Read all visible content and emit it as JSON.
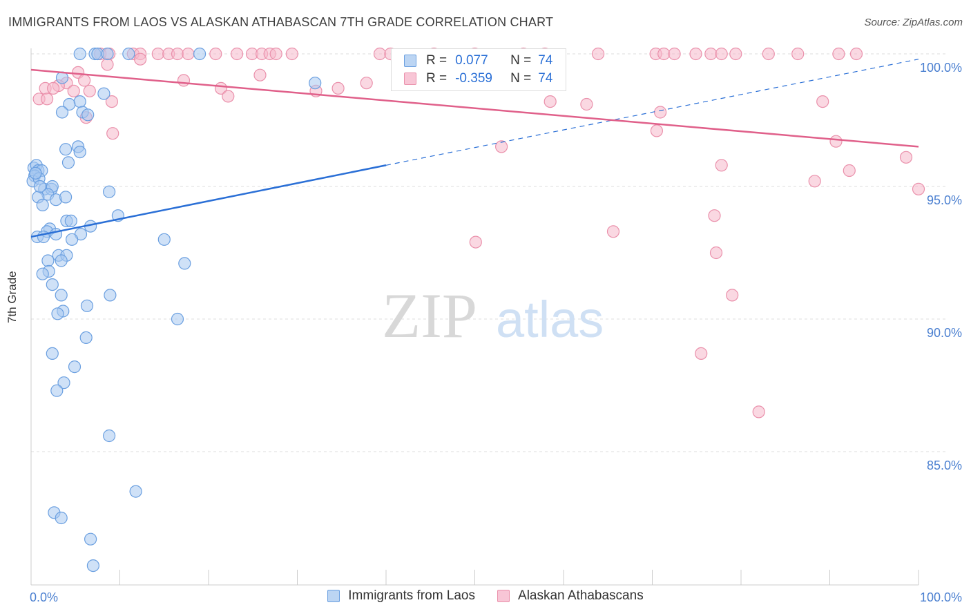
{
  "title": "IMMIGRANTS FROM LAOS VS ALASKAN ATHABASCAN 7TH GRADE CORRELATION CHART",
  "source": "Source: ZipAtlas.com",
  "watermark": {
    "part1": "ZIP",
    "part2": "atlas"
  },
  "legend_top": {
    "rows": [
      {
        "r_label": "R =",
        "r_value": "0.077",
        "n_label": "N =",
        "n_value": "74"
      },
      {
        "r_label": "R =",
        "r_value": "-0.359",
        "n_label": "N =",
        "n_value": "74"
      }
    ]
  },
  "legend_bottom": {
    "items": [
      {
        "label": "Immigrants from Laos"
      },
      {
        "label": "Alaskan Athabascans"
      }
    ]
  },
  "colors": {
    "blue_fill": "#a8c8f0",
    "blue_stroke": "#6a9fe0",
    "blue_line": "#2a6fd6",
    "pink_fill": "#f5b8cb",
    "pink_stroke": "#ea90ab",
    "pink_line": "#e0608a",
    "tick_text": "#4a7fd0",
    "grid": "#dddddd"
  },
  "chart_data": {
    "type": "scatter",
    "title": "IMMIGRANTS FROM LAOS VS ALASKAN ATHABASCAN 7TH GRADE CORRELATION CHART",
    "xlabel": "",
    "ylabel": "7th Grade",
    "xlim": [
      0,
      100
    ],
    "ylim": [
      80.5,
      100.8
    ],
    "x_tick_labels": [
      "0.0%",
      "100.0%"
    ],
    "y_ticks": [
      {
        "value": 100,
        "label": "100.0%"
      },
      {
        "value": 95,
        "label": "95.0%"
      },
      {
        "value": 90,
        "label": "90.0%"
      },
      {
        "value": 85,
        "label": "85.0%"
      }
    ],
    "series": [
      {
        "name": "Immigrants from Laos",
        "r": 0.077,
        "n": 74,
        "trend": {
          "solid": [
            [
              0,
              93.1
            ],
            [
              40,
              95.8
            ]
          ],
          "dashed": [
            [
              40,
              95.8
            ],
            [
              100,
              99.8
            ]
          ]
        },
        "points": [
          [
            5.5,
            100
          ],
          [
            7.2,
            100
          ],
          [
            7.5,
            100
          ],
          [
            8.6,
            100
          ],
          [
            11,
            100
          ],
          [
            19,
            100
          ],
          [
            32,
            98.9
          ],
          [
            3.5,
            99.1
          ],
          [
            8.2,
            98.5
          ],
          [
            5.5,
            98.2
          ],
          [
            4.3,
            98.1
          ],
          [
            3.5,
            97.8
          ],
          [
            5.8,
            97.8
          ],
          [
            6.4,
            97.7
          ],
          [
            5.3,
            96.5
          ],
          [
            3.9,
            96.4
          ],
          [
            5.5,
            96.3
          ],
          [
            4.2,
            95.9
          ],
          [
            0.3,
            95.7
          ],
          [
            0.6,
            95.8
          ],
          [
            0.8,
            95.6
          ],
          [
            1.2,
            95.6
          ],
          [
            0.5,
            95.5
          ],
          [
            0.4,
            95.4
          ],
          [
            0.2,
            95.2
          ],
          [
            0.9,
            95.3
          ],
          [
            1.5,
            94.9
          ],
          [
            2.3,
            94.9
          ],
          [
            2.4,
            95.0
          ],
          [
            1.9,
            94.7
          ],
          [
            8.8,
            94.8
          ],
          [
            0.8,
            94.6
          ],
          [
            2.8,
            94.5
          ],
          [
            3.9,
            94.6
          ],
          [
            1.3,
            94.3
          ],
          [
            9.8,
            93.9
          ],
          [
            4.0,
            93.7
          ],
          [
            4.5,
            93.7
          ],
          [
            6.7,
            93.5
          ],
          [
            2.1,
            93.4
          ],
          [
            1.8,
            93.3
          ],
          [
            2.8,
            93.2
          ],
          [
            5.6,
            93.2
          ],
          [
            0.7,
            93.1
          ],
          [
            1.4,
            93.1
          ],
          [
            4.6,
            93.0
          ],
          [
            15,
            93.0
          ],
          [
            3.1,
            92.4
          ],
          [
            4.0,
            92.4
          ],
          [
            3.4,
            92.2
          ],
          [
            1.9,
            92.2
          ],
          [
            17.3,
            92.1
          ],
          [
            2.0,
            91.8
          ],
          [
            1.3,
            91.7
          ],
          [
            2.4,
            91.3
          ],
          [
            3.4,
            90.9
          ],
          [
            8.9,
            90.9
          ],
          [
            6.3,
            90.5
          ],
          [
            3.6,
            90.3
          ],
          [
            3.0,
            90.2
          ],
          [
            16.5,
            90.0
          ],
          [
            6.2,
            89.3
          ],
          [
            2.4,
            88.7
          ],
          [
            4.9,
            88.2
          ],
          [
            3.7,
            87.6
          ],
          [
            2.9,
            87.3
          ],
          [
            8.8,
            85.6
          ],
          [
            11.8,
            83.5
          ],
          [
            2.6,
            82.7
          ],
          [
            3.4,
            82.5
          ],
          [
            6.7,
            81.7
          ],
          [
            7.0,
            80.7
          ],
          [
            0.5,
            95.5
          ],
          [
            1.0,
            95.0
          ]
        ]
      },
      {
        "name": "Alaskan Athabascans",
        "r": -0.359,
        "n": 74,
        "trend": {
          "solid": [
            [
              0,
              99.4
            ],
            [
              100,
              96.5
            ]
          ]
        },
        "points": [
          [
            7.8,
            100
          ],
          [
            8.8,
            100
          ],
          [
            11.5,
            100
          ],
          [
            12.3,
            100
          ],
          [
            14.3,
            100
          ],
          [
            15.5,
            100
          ],
          [
            16.5,
            100
          ],
          [
            17.7,
            100
          ],
          [
            20.8,
            100
          ],
          [
            23.2,
            100
          ],
          [
            24.9,
            100
          ],
          [
            26.0,
            100
          ],
          [
            26.9,
            100
          ],
          [
            27.6,
            100
          ],
          [
            29.4,
            100
          ],
          [
            39.3,
            100
          ],
          [
            40.5,
            100
          ],
          [
            45.4,
            100
          ],
          [
            50.0,
            100
          ],
          [
            55.5,
            100
          ],
          [
            57.9,
            100
          ],
          [
            63.9,
            100
          ],
          [
            70.4,
            100
          ],
          [
            71.3,
            100
          ],
          [
            72.5,
            100
          ],
          [
            74.9,
            100
          ],
          [
            76.6,
            100
          ],
          [
            77.8,
            100
          ],
          [
            79.4,
            100
          ],
          [
            83.1,
            100
          ],
          [
            86.4,
            100
          ],
          [
            91.0,
            100
          ],
          [
            93.0,
            100
          ],
          [
            12.3,
            99.8
          ],
          [
            8.6,
            99.6
          ],
          [
            5.3,
            99.3
          ],
          [
            25.8,
            99.2
          ],
          [
            6.0,
            99.0
          ],
          [
            17.2,
            99.0
          ],
          [
            4.0,
            98.9
          ],
          [
            1.6,
            98.7
          ],
          [
            3.1,
            98.8
          ],
          [
            6.6,
            98.6
          ],
          [
            21.4,
            98.7
          ],
          [
            2.5,
            98.7
          ],
          [
            4.8,
            98.6
          ],
          [
            34.6,
            98.7
          ],
          [
            37.8,
            98.9
          ],
          [
            32.1,
            98.6
          ],
          [
            22.2,
            98.4
          ],
          [
            0.9,
            98.3
          ],
          [
            1.8,
            98.3
          ],
          [
            9.1,
            98.2
          ],
          [
            58.5,
            98.2
          ],
          [
            62.6,
            98.1
          ],
          [
            89.2,
            98.2
          ],
          [
            6.2,
            97.6
          ],
          [
            70.9,
            97.8
          ],
          [
            9.2,
            97.0
          ],
          [
            70.5,
            97.1
          ],
          [
            53.0,
            96.5
          ],
          [
            90.7,
            96.7
          ],
          [
            98.6,
            96.1
          ],
          [
            77.8,
            95.8
          ],
          [
            92.2,
            95.6
          ],
          [
            88.3,
            95.2
          ],
          [
            100.0,
            94.9
          ],
          [
            77.0,
            93.9
          ],
          [
            65.6,
            93.3
          ],
          [
            50.1,
            92.9
          ],
          [
            77.2,
            92.5
          ],
          [
            79.0,
            90.9
          ],
          [
            75.5,
            88.7
          ],
          [
            82.0,
            86.5
          ]
        ]
      }
    ]
  }
}
